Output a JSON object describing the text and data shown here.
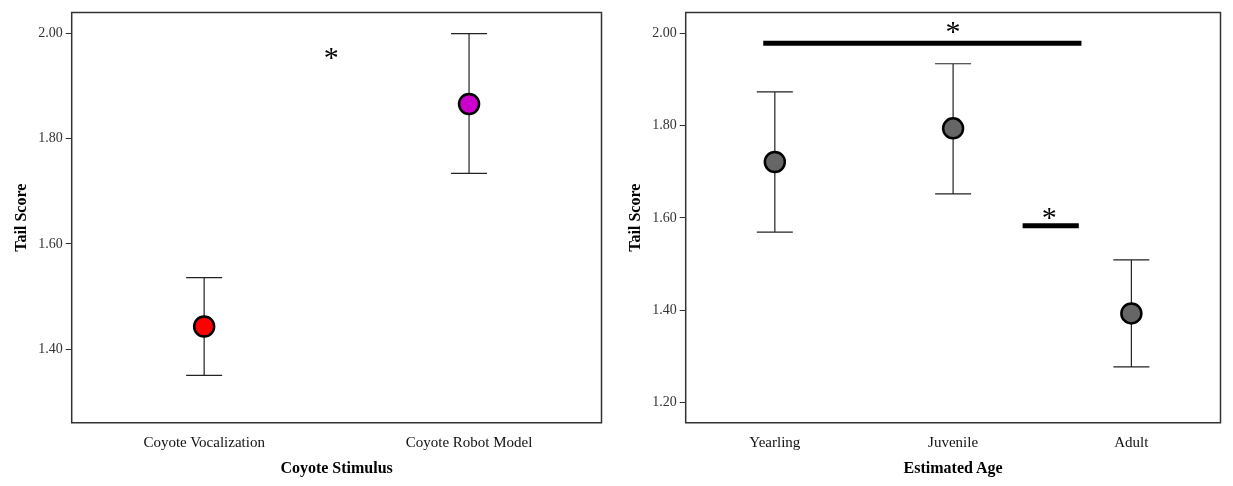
{
  "chart_data": [
    {
      "type": "scatter",
      "xlabel": "Coyote Stimulus",
      "ylabel": "Tail Score",
      "categories": [
        "Coyote Vocalization",
        "Coyote Robot Model"
      ],
      "marker": "circle",
      "series": [
        {
          "values": [
            1.443,
            1.866
          ],
          "colors": [
            "#ff0000",
            "#cc00cc"
          ],
          "errors": [
            [
              1.35,
              1.536
            ],
            [
              1.734,
              2.0
            ]
          ]
        }
      ],
      "ylim": [
        1.26,
        2.04
      ],
      "yticks": [
        {
          "value": 1.4,
          "label": "1.40"
        },
        {
          "value": 1.6,
          "label": "1.60"
        },
        {
          "value": 1.8,
          "label": "1.80"
        },
        {
          "value": 2.0,
          "label": "2.00"
        }
      ],
      "annotations": [
        "*"
      ]
    },
    {
      "type": "scatter",
      "xlabel": "Estimated Age",
      "ylabel": "Tail Score",
      "categories": [
        "Yearling",
        "Juvenile",
        "Adult"
      ],
      "marker": "circle",
      "series": [
        {
          "values": [
            1.721,
            1.794,
            1.393
          ],
          "color": "#666666",
          "errors": [
            [
              1.569,
              1.873
            ],
            [
              1.652,
              1.934
            ],
            [
              1.277,
              1.509
            ]
          ]
        }
      ],
      "ylim": [
        1.156,
        2.045
      ],
      "yticks": [
        {
          "value": 1.2,
          "label": "1.20"
        },
        {
          "value": 1.4,
          "label": "1.40"
        },
        {
          "value": 1.6,
          "label": "1.60"
        },
        {
          "value": 1.8,
          "label": "1.80"
        },
        {
          "value": 2.0,
          "label": "2.00"
        }
      ],
      "annotations": [
        "*",
        "*"
      ]
    }
  ]
}
